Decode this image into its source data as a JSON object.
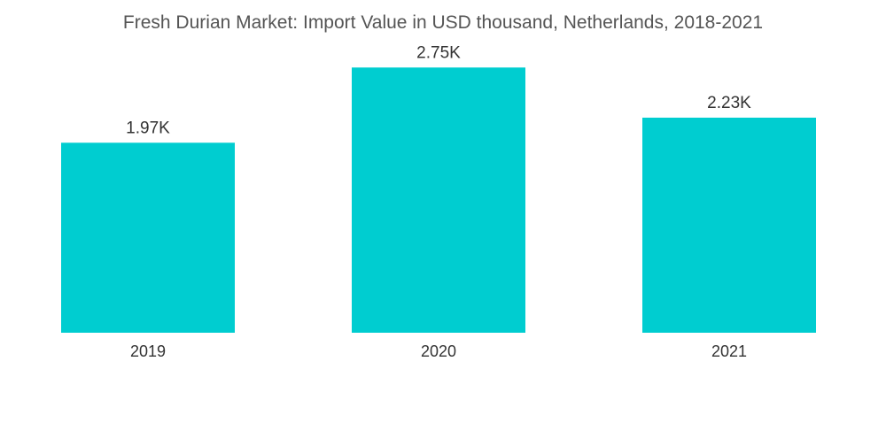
{
  "chart_data": {
    "type": "bar",
    "title": "Fresh Durian Market: Import Value in USD thousand, Netherlands, 2018-2021",
    "categories": [
      "2019",
      "2020",
      "2021"
    ],
    "values": [
      1.97,
      2.75,
      2.23
    ],
    "value_labels": [
      "1.97K",
      "2.75K",
      "2.23K"
    ],
    "xlabel": "",
    "ylabel": "",
    "ylim": [
      0,
      3.45
    ],
    "grid": false,
    "legend": "none",
    "bar_color": "#00cdd0"
  }
}
